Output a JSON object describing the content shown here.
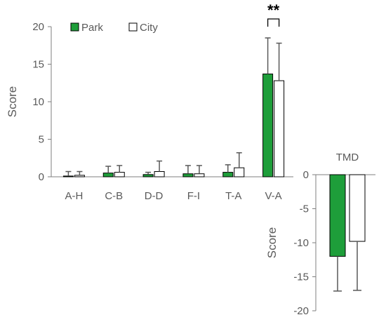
{
  "colors": {
    "park": "#1e9e3a",
    "city": "#ffffff",
    "axis": "#7f7f7f",
    "text": "#595959",
    "errorbar": "#595959"
  },
  "chart_data": [
    {
      "type": "bar",
      "ylabel": "Score",
      "ylim": [
        0,
        20
      ],
      "yticks": [
        "0",
        "5",
        "10",
        "15",
        "20"
      ],
      "categories": [
        "A-H",
        "C-B",
        "D-D",
        "F-I",
        "T-A",
        "V-A"
      ],
      "legend": {
        "position": "top-left",
        "entries": [
          "Park",
          "City"
        ]
      },
      "series": [
        {
          "name": "Park",
          "values": [
            0.1,
            0.5,
            0.3,
            0.4,
            0.6,
            13.7
          ],
          "errors": [
            0.6,
            0.9,
            0.3,
            1.1,
            1.0,
            4.8
          ]
        },
        {
          "name": "City",
          "values": [
            0.2,
            0.6,
            0.7,
            0.4,
            1.2,
            12.8
          ],
          "errors": [
            0.5,
            0.9,
            1.4,
            1.1,
            2.0,
            5.0
          ]
        }
      ],
      "annotation": {
        "text": "**",
        "category": "V-A"
      }
    },
    {
      "type": "bar",
      "title": "TMD",
      "ylabel": "Score",
      "ylim": [
        -20,
        0
      ],
      "yticks": [
        "0",
        "-5",
        "-10",
        "-15",
        "-20"
      ],
      "categories": [
        ""
      ],
      "series": [
        {
          "name": "Park",
          "values": [
            -12.0
          ],
          "errors": [
            5.1
          ]
        },
        {
          "name": "City",
          "values": [
            -9.8
          ],
          "errors": [
            7.2
          ]
        }
      ]
    }
  ]
}
